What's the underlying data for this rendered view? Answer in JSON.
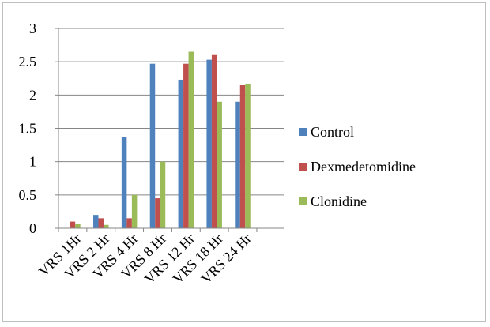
{
  "chart_data": {
    "type": "bar",
    "categories": [
      "VRS 1Hr",
      "VRS 2 Hr",
      "VRS 4 Hr",
      "VRS 8 Hr",
      "VRS 12 Hr",
      "VRS 18 Hr",
      "VRS 24 Hr"
    ],
    "series": [
      {
        "name": "Control",
        "color": "#4f81bd",
        "values": [
          0.0,
          0.2,
          1.37,
          2.47,
          2.23,
          2.53,
          1.9
        ]
      },
      {
        "name": "Dexmedetomidine",
        "color": "#c0504d",
        "values": [
          0.1,
          0.15,
          0.15,
          0.45,
          2.47,
          2.6,
          2.15
        ]
      },
      {
        "name": "Clonidine",
        "color": "#9bbb59",
        "values": [
          0.07,
          0.05,
          0.5,
          1.0,
          2.65,
          1.9,
          2.17
        ]
      }
    ],
    "ylim": [
      0,
      3
    ],
    "yticks": [
      0,
      0.5,
      1,
      1.5,
      2,
      2.5,
      3
    ],
    "ytick_labels": [
      "0",
      "0.5",
      "1",
      "1.5",
      "2",
      "2.5",
      "3"
    ],
    "grid": true,
    "legend_position": "right",
    "title": "",
    "xlabel": "",
    "ylabel": ""
  }
}
